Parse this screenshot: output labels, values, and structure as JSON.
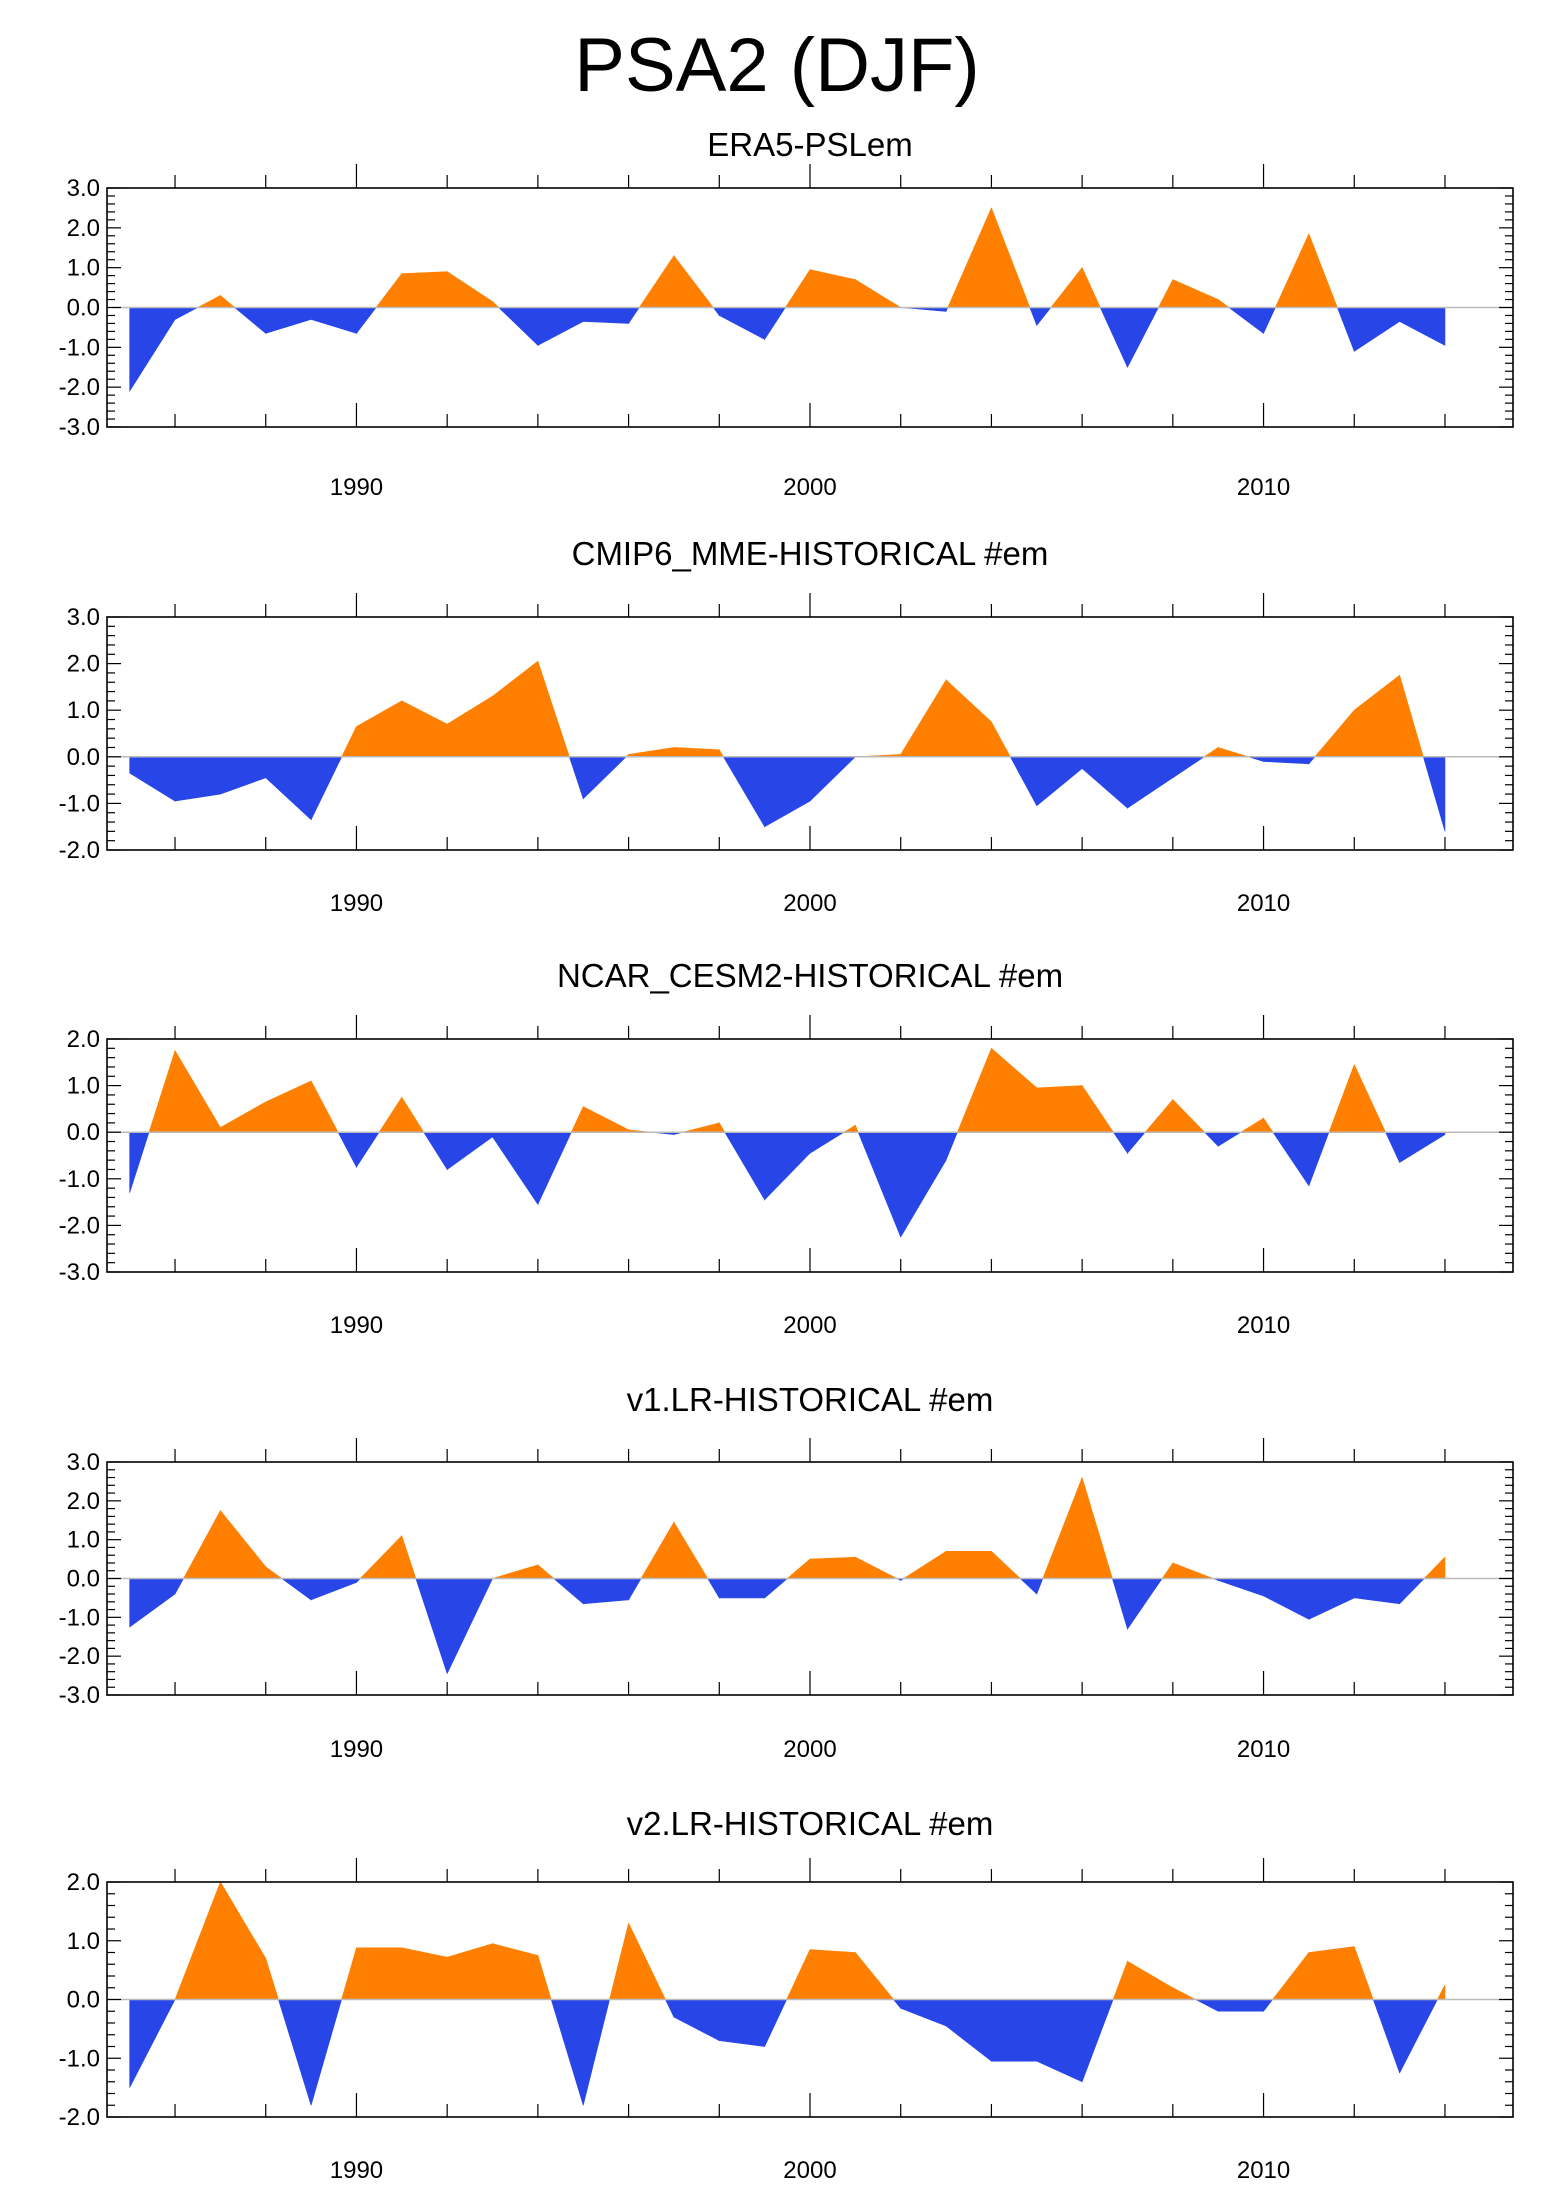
{
  "title": "PSA2 (DJF)",
  "colors": {
    "positive": "#ff8000",
    "negative": "#2846e8",
    "zero_line": "#bbbbbb",
    "axis": "#000000"
  },
  "chart_data": [
    {
      "type": "area",
      "title": "ERA5-PSLem",
      "x": [
        1985,
        1986,
        1987,
        1988,
        1989,
        1990,
        1991,
        1992,
        1993,
        1994,
        1995,
        1996,
        1997,
        1998,
        1999,
        2000,
        2001,
        2002,
        2003,
        2004,
        2005,
        2006,
        2007,
        2008,
        2009,
        2010,
        2011,
        2012,
        2013,
        2014
      ],
      "values": [
        -2.1,
        -0.3,
        0.3,
        -0.65,
        -0.3,
        -0.65,
        0.85,
        0.9,
        0.15,
        -0.95,
        -0.35,
        -0.4,
        1.3,
        -0.2,
        -0.8,
        0.95,
        0.7,
        0.0,
        -0.1,
        2.5,
        -0.45,
        1.0,
        -1.5,
        0.7,
        0.2,
        -0.65,
        1.85,
        -1.1,
        -0.35,
        -0.95
      ],
      "yticks": [
        "3.0",
        "2.0",
        "1.0",
        "0.0",
        "-1.0",
        "-2.0",
        "-3.0"
      ],
      "ylim": [
        -3,
        3
      ],
      "xlim": [
        1984.5,
        2015.5
      ],
      "xticks": [
        "1990",
        "2000",
        "2010"
      ]
    },
    {
      "type": "area",
      "title": "CMIP6_MME-HISTORICAL  #em",
      "x": [
        1985,
        1986,
        1987,
        1988,
        1989,
        1990,
        1991,
        1992,
        1993,
        1994,
        1995,
        1996,
        1997,
        1998,
        1999,
        2000,
        2001,
        2002,
        2003,
        2004,
        2005,
        2006,
        2007,
        2008,
        2009,
        2010,
        2011,
        2012,
        2013,
        2014
      ],
      "values": [
        -0.35,
        -0.95,
        -0.8,
        -0.45,
        -1.35,
        0.65,
        1.2,
        0.7,
        1.3,
        2.05,
        -0.9,
        0.05,
        0.2,
        0.15,
        -1.5,
        -0.95,
        0.0,
        0.05,
        1.65,
        0.75,
        -1.05,
        -0.25,
        -1.1,
        -0.45,
        0.2,
        -0.1,
        -0.15,
        1.0,
        1.75,
        -1.6
      ],
      "yticks": [
        "3.0",
        "2.0",
        "1.0",
        "0.0",
        "-1.0",
        "-2.0"
      ],
      "ylim": [
        -2,
        3
      ],
      "xlim": [
        1984.5,
        2015.5
      ],
      "xticks": [
        "1990",
        "2000",
        "2010"
      ]
    },
    {
      "type": "area",
      "title": "NCAR_CESM2-HISTORICAL  #em",
      "x": [
        1985,
        1986,
        1987,
        1988,
        1989,
        1990,
        1991,
        1992,
        1993,
        1994,
        1995,
        1996,
        1997,
        1998,
        1999,
        2000,
        2001,
        2002,
        2003,
        2004,
        2005,
        2006,
        2007,
        2008,
        2009,
        2010,
        2011,
        2012,
        2013,
        2014
      ],
      "values": [
        -1.3,
        1.75,
        0.1,
        0.65,
        1.1,
        -0.75,
        0.75,
        -0.8,
        -0.1,
        -1.55,
        0.55,
        0.05,
        -0.05,
        0.2,
        -1.45,
        -0.45,
        0.15,
        -2.25,
        -0.6,
        1.8,
        0.95,
        1.0,
        -0.45,
        0.7,
        -0.3,
        0.3,
        -1.15,
        1.45,
        -0.65,
        -0.05
      ],
      "yticks": [
        "2.0",
        "1.0",
        "0.0",
        "-1.0",
        "-2.0",
        "-3.0"
      ],
      "ylim": [
        -3,
        2
      ],
      "xlim": [
        1984.5,
        2015.5
      ],
      "xticks": [
        "1990",
        "2000",
        "2010"
      ]
    },
    {
      "type": "area",
      "title": "v1.LR-HISTORICAL  #em",
      "x": [
        1985,
        1986,
        1987,
        1988,
        1989,
        1990,
        1991,
        1992,
        1993,
        1994,
        1995,
        1996,
        1997,
        1998,
        1999,
        2000,
        2001,
        2002,
        2003,
        2004,
        2005,
        2006,
        2007,
        2008,
        2009,
        2010,
        2011,
        2012,
        2013,
        2014
      ],
      "values": [
        -1.25,
        -0.4,
        1.75,
        0.3,
        -0.55,
        -0.1,
        1.1,
        -2.45,
        0.0,
        0.35,
        -0.65,
        -0.55,
        1.45,
        -0.5,
        -0.5,
        0.5,
        0.55,
        -0.05,
        0.7,
        0.7,
        -0.4,
        2.6,
        -1.3,
        0.4,
        -0.05,
        -0.45,
        -1.05,
        -0.5,
        -0.65,
        0.55
      ],
      "yticks": [
        "3.0",
        "2.0",
        "1.0",
        "0.0",
        "-1.0",
        "-2.0",
        "-3.0"
      ],
      "ylim": [
        -3,
        3
      ],
      "xlim": [
        1984.5,
        2015.5
      ],
      "xticks": [
        "1990",
        "2000",
        "2010"
      ]
    },
    {
      "type": "area",
      "title": "v2.LR-HISTORICAL  #em",
      "x": [
        1985,
        1986,
        1987,
        1988,
        1989,
        1990,
        1991,
        1992,
        1993,
        1994,
        1995,
        1996,
        1997,
        1998,
        1999,
        2000,
        2001,
        2002,
        2003,
        2004,
        2005,
        2006,
        2007,
        2008,
        2009,
        2010,
        2011,
        2012,
        2013,
        2014
      ],
      "values": [
        -1.5,
        0.0,
        2.0,
        0.7,
        -1.8,
        0.88,
        0.88,
        0.72,
        0.95,
        0.75,
        -1.8,
        1.3,
        -0.3,
        -0.7,
        -0.8,
        0.85,
        0.8,
        -0.15,
        -0.45,
        -1.05,
        -1.05,
        -1.4,
        0.65,
        0.2,
        -0.2,
        -0.2,
        0.8,
        0.9,
        -1.25,
        0.25
      ],
      "yticks": [
        "2.0",
        "1.0",
        "0.0",
        "-1.0",
        "-2.0"
      ],
      "ylim": [
        -2,
        2
      ],
      "xlim": [
        1984.5,
        2015.5
      ],
      "xticks": [
        "1990",
        "2000",
        "2010"
      ]
    }
  ]
}
